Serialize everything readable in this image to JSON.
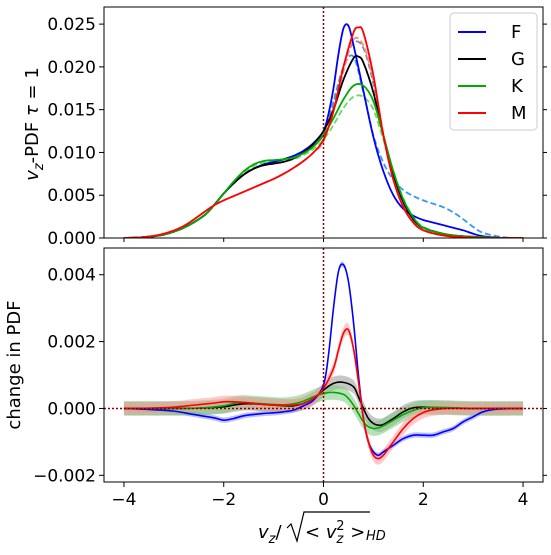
{
  "chart_data": [
    {
      "type": "line",
      "panel": "top",
      "ylabel": "$v_z$-PDF  $\\tau = 1$",
      "ylabel_parts": {
        "main": "v",
        "sub": "z",
        "rest": "-PDF  ",
        "tau": "τ",
        "eq": " = 1"
      },
      "xlim": [
        -4.4,
        4.4
      ],
      "ylim": [
        0.0,
        0.027
      ],
      "yticks": [
        0.0,
        0.005,
        0.01,
        0.015,
        0.02,
        0.025
      ],
      "ytick_labels": [
        "0.000",
        "0.005",
        "0.010",
        "0.015",
        "0.020",
        "0.025"
      ],
      "vline_x": 0.0,
      "legend_position": "top-right",
      "series": [
        {
          "name": "F",
          "color": "#0000ff",
          "style": "solid",
          "x": [
            -4,
            -3.6,
            -3.2,
            -2.8,
            -2.4,
            -2.2,
            -2.0,
            -1.8,
            -1.6,
            -1.4,
            -1.2,
            -1.0,
            -0.8,
            -0.6,
            -0.4,
            -0.2,
            0.0,
            0.1,
            0.2,
            0.3,
            0.4,
            0.5,
            0.6,
            0.8,
            1.0,
            1.2,
            1.4,
            1.6,
            1.8,
            2.0,
            2.2,
            2.4,
            2.6,
            2.8,
            3.0,
            3.2,
            3.6,
            4.0
          ],
          "y": [
            0,
            0.0001,
            0.0004,
            0.0012,
            0.0026,
            0.0038,
            0.0052,
            0.0064,
            0.0074,
            0.0081,
            0.0086,
            0.0089,
            0.0092,
            0.0096,
            0.0102,
            0.0111,
            0.0125,
            0.0145,
            0.0175,
            0.0215,
            0.0245,
            0.0248,
            0.0226,
            0.0172,
            0.0118,
            0.0078,
            0.005,
            0.0034,
            0.0026,
            0.0021,
            0.0018,
            0.0015,
            0.0012,
            0.0009,
            0.0005,
            0.0002,
            0.0,
            0.0
          ]
        },
        {
          "name": "F (HD)",
          "color": "#3399ff",
          "style": "dashed",
          "x": [
            -4,
            -3.6,
            -3.2,
            -2.8,
            -2.4,
            -2.2,
            -2.0,
            -1.8,
            -1.6,
            -1.4,
            -1.2,
            -1.0,
            -0.8,
            -0.6,
            -0.4,
            -0.2,
            0.0,
            0.2,
            0.4,
            0.6,
            0.8,
            1.0,
            1.2,
            1.4,
            1.6,
            1.8,
            2.0,
            2.2,
            2.4,
            2.6,
            2.8,
            3.0,
            3.2,
            3.6,
            4.0
          ],
          "y": [
            0,
            0.0001,
            0.0004,
            0.0012,
            0.0026,
            0.0038,
            0.0052,
            0.0064,
            0.0074,
            0.0081,
            0.0086,
            0.0089,
            0.0092,
            0.0096,
            0.0102,
            0.011,
            0.0122,
            0.016,
            0.02,
            0.0212,
            0.017,
            0.012,
            0.0088,
            0.0068,
            0.0056,
            0.0049,
            0.0044,
            0.004,
            0.0036,
            0.003,
            0.0022,
            0.0013,
            0.0006,
            0.0001,
            0.0
          ]
        },
        {
          "name": "G",
          "color": "#000000",
          "style": "solid",
          "x": [
            -4,
            -3.6,
            -3.2,
            -2.8,
            -2.4,
            -2.2,
            -2.0,
            -1.8,
            -1.6,
            -1.4,
            -1.2,
            -1.0,
            -0.8,
            -0.6,
            -0.4,
            -0.2,
            0.0,
            0.2,
            0.4,
            0.6,
            0.7,
            0.8,
            1.0,
            1.2,
            1.4,
            1.6,
            1.8,
            2.0,
            2.4,
            2.8,
            3.2,
            3.6,
            4.0
          ],
          "y": [
            0,
            0.0001,
            0.0004,
            0.0012,
            0.0026,
            0.0038,
            0.0052,
            0.0064,
            0.0074,
            0.0081,
            0.0085,
            0.0087,
            0.0089,
            0.0093,
            0.01,
            0.011,
            0.0125,
            0.015,
            0.0185,
            0.021,
            0.0212,
            0.0205,
            0.017,
            0.012,
            0.0075,
            0.0042,
            0.0022,
            0.0012,
            0.0005,
            0.0002,
            0.0001,
            0.0,
            0.0
          ]
        },
        {
          "name": "G (HD)",
          "color": "#888888",
          "style": "dashed",
          "x": [
            -4,
            -3.6,
            -3.2,
            -2.8,
            -2.4,
            -2.2,
            -2.0,
            -1.8,
            -1.6,
            -1.4,
            -1.2,
            -1.0,
            -0.8,
            -0.6,
            -0.4,
            -0.2,
            0.0,
            0.2,
            0.4,
            0.6,
            0.8,
            1.0,
            1.2,
            1.4,
            1.6,
            1.8,
            2.0,
            2.4,
            2.8,
            3.2,
            3.6,
            4.0
          ],
          "y": [
            0,
            0.0001,
            0.0004,
            0.0012,
            0.0026,
            0.0038,
            0.0052,
            0.0064,
            0.0074,
            0.0081,
            0.0085,
            0.0087,
            0.0089,
            0.0093,
            0.01,
            0.011,
            0.0122,
            0.0155,
            0.02,
            0.0228,
            0.0222,
            0.018,
            0.012,
            0.0072,
            0.004,
            0.0021,
            0.0011,
            0.0004,
            0.0002,
            0.0001,
            0.0,
            0.0
          ]
        },
        {
          "name": "K",
          "color": "#00aa00",
          "style": "solid",
          "x": [
            -4,
            -3.6,
            -3.2,
            -2.8,
            -2.4,
            -2.2,
            -2.0,
            -1.8,
            -1.6,
            -1.4,
            -1.2,
            -1.0,
            -0.8,
            -0.6,
            -0.4,
            -0.2,
            0.0,
            0.2,
            0.4,
            0.6,
            0.8,
            1.0,
            1.2,
            1.4,
            1.6,
            1.8,
            2.0,
            2.4,
            2.8,
            3.2,
            3.6,
            4.0
          ],
          "y": [
            0,
            0.0001,
            0.0004,
            0.0012,
            0.0026,
            0.0038,
            0.0052,
            0.0066,
            0.0078,
            0.0086,
            0.009,
            0.0091,
            0.0092,
            0.0094,
            0.0099,
            0.0107,
            0.012,
            0.014,
            0.0162,
            0.0178,
            0.0178,
            0.016,
            0.012,
            0.0078,
            0.0045,
            0.0024,
            0.0012,
            0.0005,
            0.0002,
            0.0001,
            0.0,
            0.0
          ]
        },
        {
          "name": "K (HD)",
          "color": "#66dd66",
          "style": "dashed",
          "x": [
            -4,
            -3.6,
            -3.2,
            -2.8,
            -2.4,
            -2.2,
            -2.0,
            -1.8,
            -1.6,
            -1.4,
            -1.2,
            -1.0,
            -0.8,
            -0.6,
            -0.4,
            -0.2,
            0.0,
            0.2,
            0.4,
            0.6,
            0.8,
            1.0,
            1.2,
            1.4,
            1.6,
            1.8,
            2.0,
            2.4,
            2.8,
            3.2,
            3.6,
            4.0
          ],
          "y": [
            0,
            0.0001,
            0.0004,
            0.0012,
            0.0026,
            0.0038,
            0.0052,
            0.0065,
            0.0076,
            0.0084,
            0.0088,
            0.0089,
            0.009,
            0.0092,
            0.0097,
            0.0104,
            0.0115,
            0.0132,
            0.0152,
            0.0165,
            0.0165,
            0.015,
            0.0115,
            0.0078,
            0.0046,
            0.0025,
            0.0013,
            0.0005,
            0.0002,
            0.0001,
            0.0,
            0.0
          ]
        },
        {
          "name": "M",
          "color": "#ff0000",
          "style": "solid",
          "x": [
            -4,
            -3.6,
            -3.2,
            -2.8,
            -2.4,
            -2.2,
            -2.0,
            -1.8,
            -1.6,
            -1.4,
            -1.2,
            -1.0,
            -0.8,
            -0.6,
            -0.4,
            -0.2,
            0.0,
            0.2,
            0.4,
            0.6,
            0.7,
            0.8,
            1.0,
            1.2,
            1.4,
            1.6,
            1.8,
            2.0,
            2.4,
            2.8,
            3.2,
            3.6,
            4.0
          ],
          "y": [
            0,
            0.0001,
            0.0005,
            0.0014,
            0.003,
            0.0038,
            0.0044,
            0.0049,
            0.0054,
            0.0059,
            0.0064,
            0.0069,
            0.0075,
            0.0082,
            0.009,
            0.01,
            0.0115,
            0.0148,
            0.02,
            0.024,
            0.0246,
            0.024,
            0.019,
            0.012,
            0.0068,
            0.0036,
            0.0018,
            0.0009,
            0.0003,
            0.0001,
            0.0,
            0.0,
            0.0
          ]
        },
        {
          "name": "M (HD)",
          "color": "#ff8888",
          "style": "dashed",
          "x": [
            -4,
            -3.6,
            -3.2,
            -2.8,
            -2.4,
            -2.2,
            -2.0,
            -1.8,
            -1.6,
            -1.4,
            -1.2,
            -1.0,
            -0.8,
            -0.6,
            -0.4,
            -0.2,
            0.0,
            0.2,
            0.4,
            0.6,
            0.8,
            1.0,
            1.2,
            1.4,
            1.6,
            1.8,
            2.0,
            2.4,
            2.8,
            3.2,
            3.6,
            4.0
          ],
          "y": [
            0,
            0.0001,
            0.0005,
            0.0014,
            0.003,
            0.0038,
            0.0044,
            0.0049,
            0.0054,
            0.0059,
            0.0064,
            0.0069,
            0.0075,
            0.0082,
            0.009,
            0.01,
            0.0113,
            0.015,
            0.0195,
            0.0232,
            0.0225,
            0.0185,
            0.0122,
            0.007,
            0.0037,
            0.0019,
            0.0009,
            0.0003,
            0.0001,
            0.0,
            0.0,
            0.0
          ]
        }
      ],
      "legend": [
        {
          "label": "F",
          "color": "#0000ff"
        },
        {
          "label": "G",
          "color": "#000000"
        },
        {
          "label": "K",
          "color": "#00aa00"
        },
        {
          "label": "M",
          "color": "#ff0000"
        }
      ]
    },
    {
      "type": "line",
      "panel": "bottom",
      "ylabel": "change in PDF",
      "xlabel": "$v_z/\\sqrt{<v_z^2>}_{HD}$",
      "xlabel_parts": {
        "v": "v",
        "sub": "z",
        "slash": "/",
        "lt": "< ",
        "v2": "v",
        "sub2": "z",
        "sup2": "2",
        "gt": " >",
        "hd": "HD"
      },
      "xlim": [
        -4.4,
        4.4
      ],
      "ylim": [
        -0.0022,
        0.0048
      ],
      "xticks": [
        -4,
        -2,
        0,
        2,
        4
      ],
      "xtick_labels": [
        "−4",
        "−2",
        "0",
        "2",
        "4"
      ],
      "yticks": [
        -0.002,
        0.0,
        0.002,
        0.004
      ],
      "ytick_labels": [
        "−0.002",
        "0.000",
        "0.002",
        "0.004"
      ],
      "vline_x": 0.0,
      "hline_y": 0.0,
      "series": [
        {
          "name": "F",
          "color": "#0000ff",
          "x": [
            -4,
            -3.5,
            -3.0,
            -2.6,
            -2.2,
            -2.0,
            -1.8,
            -1.6,
            -1.4,
            -1.2,
            -1.0,
            -0.8,
            -0.6,
            -0.4,
            -0.2,
            0.0,
            0.1,
            0.2,
            0.3,
            0.4,
            0.5,
            0.6,
            0.7,
            0.8,
            0.9,
            1.0,
            1.1,
            1.2,
            1.4,
            1.6,
            1.8,
            2.0,
            2.2,
            2.4,
            2.6,
            2.8,
            3.0,
            3.2,
            3.5,
            4.0
          ],
          "y": [
            0,
            -3e-05,
            -8e-05,
            -0.00018,
            -0.00028,
            -0.00035,
            -0.0003,
            -0.00022,
            -0.00018,
            -0.00015,
            -0.00013,
            -0.0001,
            -5e-05,
            8e-05,
            0.00025,
            0.0007,
            0.0016,
            0.003,
            0.0041,
            0.0043,
            0.0038,
            0.0026,
            0.001,
            -0.0003,
            -0.001,
            -0.0013,
            -0.0014,
            -0.0013,
            -0.0011,
            -0.0009,
            -0.0008,
            -0.0008,
            -0.0008,
            -0.0007,
            -0.0006,
            -0.0004,
            -0.00025,
            -0.0001,
            -2e-05,
            0
          ]
        },
        {
          "name": "G",
          "color": "#000000",
          "x": [
            -4,
            -3.0,
            -2.5,
            -2.0,
            -1.8,
            -1.6,
            -1.4,
            -1.2,
            -1.0,
            -0.8,
            -0.6,
            -0.4,
            -0.2,
            0.0,
            0.2,
            0.4,
            0.6,
            0.7,
            0.8,
            0.9,
            1.0,
            1.1,
            1.2,
            1.4,
            1.6,
            1.8,
            2.0,
            2.4,
            3.0,
            4.0
          ],
          "y": [
            0,
            0,
            1e-05,
            5e-05,
            0.0001,
            0.00014,
            0.00014,
            0.00012,
            0.0001,
            8e-05,
            8e-05,
            0.00015,
            0.0003,
            0.00055,
            0.00075,
            0.00078,
            0.00065,
            0.00035,
            0.0,
            -0.0003,
            -0.00045,
            -0.0005,
            -0.00048,
            -0.0003,
            -0.0001,
            2e-05,
            4e-05,
            2e-05,
            0,
            0
          ]
        },
        {
          "name": "K",
          "color": "#00aa00",
          "x": [
            -4,
            -3.0,
            -2.5,
            -2.0,
            -1.8,
            -1.6,
            -1.4,
            -1.2,
            -1.0,
            -0.8,
            -0.6,
            -0.4,
            -0.2,
            0.0,
            0.2,
            0.4,
            0.5,
            0.6,
            0.7,
            0.8,
            0.9,
            1.0,
            1.1,
            1.2,
            1.4,
            1.6,
            1.8,
            2.0,
            2.4,
            3.0,
            4.0
          ],
          "y": [
            0,
            0,
            1e-05,
            8e-05,
            0.00015,
            0.00018,
            0.00016,
            0.00014,
            0.00012,
            0.00011,
            0.00014,
            0.00022,
            0.00035,
            0.00045,
            0.00048,
            0.00042,
            0.0003,
            0.0001,
            -0.00015,
            -0.0004,
            -0.00055,
            -0.0006,
            -0.00058,
            -0.00052,
            -0.00035,
            -0.00018,
            -6e-05,
            2e-05,
            3e-05,
            0,
            0
          ]
        },
        {
          "name": "M",
          "color": "#ff0000",
          "x": [
            -4,
            -3.5,
            -3.0,
            -2.6,
            -2.2,
            -2.0,
            -1.8,
            -1.6,
            -1.4,
            -1.2,
            -1.0,
            -0.8,
            -0.6,
            -0.4,
            -0.2,
            0.0,
            0.2,
            0.3,
            0.4,
            0.5,
            0.6,
            0.7,
            0.8,
            0.9,
            1.0,
            1.1,
            1.2,
            1.3,
            1.4,
            1.6,
            1.8,
            2.0,
            2.2,
            2.5,
            3.0,
            4.0
          ],
          "y": [
            0,
            1e-05,
            4e-05,
            0.0001,
            0.00016,
            0.0002,
            0.0002,
            0.00018,
            0.00015,
            0.00012,
            0.0001,
            9e-05,
            0.0001,
            0.00015,
            0.0003,
            0.0006,
            0.0012,
            0.00175,
            0.00225,
            0.00235,
            0.0018,
            0.0008,
            -0.0003,
            -0.001,
            -0.0014,
            -0.0015,
            -0.0014,
            -0.0012,
            -0.001,
            -0.0006,
            -0.0003,
            -0.00012,
            -4e-05,
            0,
            0,
            0
          ]
        }
      ],
      "band_halfwidth": {
        "F": 8e-05,
        "G": 0.0002,
        "K": 0.00022,
        "M": 0.00018
      },
      "band_colors": {
        "F": "#8c8cff",
        "G": "#999999",
        "K": "#7fc97f",
        "M": "#ff9c9c"
      }
    }
  ]
}
